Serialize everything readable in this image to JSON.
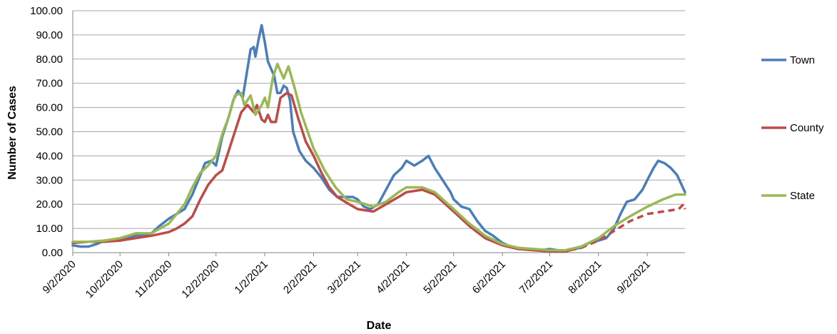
{
  "chart_data": {
    "type": "line",
    "title": "",
    "xlabel": "Date",
    "ylabel": "Number of Cases",
    "ylim": [
      0,
      100
    ],
    "xlim": [
      "2020-09-02",
      "2021-09-26"
    ],
    "y_ticks": [
      "0.00",
      "10.00",
      "20.00",
      "30.00",
      "40.00",
      "50.00",
      "60.00",
      "70.00",
      "80.00",
      "90.00",
      "100.00"
    ],
    "x_ticks": [
      {
        "date": "2020-09-02",
        "label": "9/2/2020"
      },
      {
        "date": "2020-10-02",
        "label": "10/2/2020"
      },
      {
        "date": "2020-11-02",
        "label": "11/2/2020"
      },
      {
        "date": "2020-12-02",
        "label": "12/2/2020"
      },
      {
        "date": "2021-01-02",
        "label": "1/2/2021"
      },
      {
        "date": "2021-02-02",
        "label": "2/2/2021"
      },
      {
        "date": "2021-03-02",
        "label": "3/2/2021"
      },
      {
        "date": "2021-04-02",
        "label": "4/2/2021"
      },
      {
        "date": "2021-05-02",
        "label": "5/2/2021"
      },
      {
        "date": "2021-06-02",
        "label": "6/2/2021"
      },
      {
        "date": "2021-07-02",
        "label": "7/2/2021"
      },
      {
        "date": "2021-08-02",
        "label": "8/2/2021"
      },
      {
        "date": "2021-09-02",
        "label": "9/2/2021"
      }
    ],
    "grid": "horizontal",
    "legend": "right",
    "series": [
      {
        "name": "Town",
        "color": "#4a7ebb",
        "points": [
          [
            "2020-09-02",
            3
          ],
          [
            "2020-09-07",
            2.5
          ],
          [
            "2020-09-12",
            2.5
          ],
          [
            "2020-09-17",
            3.5
          ],
          [
            "2020-09-22",
            5
          ],
          [
            "2020-09-27",
            5
          ],
          [
            "2020-10-02",
            5.5
          ],
          [
            "2020-10-07",
            6
          ],
          [
            "2020-10-12",
            7
          ],
          [
            "2020-10-17",
            7.5
          ],
          [
            "2020-10-22",
            8
          ],
          [
            "2020-10-27",
            11
          ],
          [
            "2020-11-02",
            14
          ],
          [
            "2020-11-07",
            16
          ],
          [
            "2020-11-12",
            18
          ],
          [
            "2020-11-17",
            24
          ],
          [
            "2020-11-22",
            32
          ],
          [
            "2020-11-25",
            37
          ],
          [
            "2020-11-29",
            38
          ],
          [
            "2020-12-02",
            36
          ],
          [
            "2020-12-06",
            48
          ],
          [
            "2020-12-10",
            56
          ],
          [
            "2020-12-13",
            63
          ],
          [
            "2020-12-16",
            67
          ],
          [
            "2020-12-19",
            64
          ],
          [
            "2020-12-22",
            76
          ],
          [
            "2020-12-24",
            84
          ],
          [
            "2020-12-26",
            85
          ],
          [
            "2020-12-27",
            81
          ],
          [
            "2020-12-29",
            88
          ],
          [
            "2020-12-31",
            94
          ],
          [
            "2021-01-02",
            87
          ],
          [
            "2021-01-04",
            79
          ],
          [
            "2021-01-06",
            76
          ],
          [
            "2021-01-08",
            73
          ],
          [
            "2021-01-10",
            66
          ],
          [
            "2021-01-12",
            66
          ],
          [
            "2021-01-14",
            69
          ],
          [
            "2021-01-16",
            68
          ],
          [
            "2021-01-18",
            63
          ],
          [
            "2021-01-20",
            50
          ],
          [
            "2021-01-24",
            42
          ],
          [
            "2021-01-28",
            38
          ],
          [
            "2021-02-02",
            35
          ],
          [
            "2021-02-07",
            31
          ],
          [
            "2021-02-12",
            26
          ],
          [
            "2021-02-17",
            23
          ],
          [
            "2021-02-22",
            23
          ],
          [
            "2021-02-27",
            23
          ],
          [
            "2021-03-02",
            22
          ],
          [
            "2021-03-06",
            19
          ],
          [
            "2021-03-10",
            18
          ],
          [
            "2021-03-15",
            20
          ],
          [
            "2021-03-20",
            26
          ],
          [
            "2021-03-25",
            32
          ],
          [
            "2021-03-30",
            35
          ],
          [
            "2021-04-02",
            38
          ],
          [
            "2021-04-07",
            36
          ],
          [
            "2021-04-12",
            38
          ],
          [
            "2021-04-16",
            40
          ],
          [
            "2021-04-20",
            35
          ],
          [
            "2021-04-25",
            30
          ],
          [
            "2021-04-30",
            25
          ],
          [
            "2021-05-02",
            22
          ],
          [
            "2021-05-07",
            19
          ],
          [
            "2021-05-12",
            18
          ],
          [
            "2021-05-17",
            13
          ],
          [
            "2021-05-22",
            9
          ],
          [
            "2021-05-27",
            7
          ],
          [
            "2021-06-02",
            4
          ],
          [
            "2021-06-07",
            2.5
          ],
          [
            "2021-06-12",
            2
          ],
          [
            "2021-06-17",
            1.5
          ],
          [
            "2021-06-22",
            1
          ],
          [
            "2021-06-27",
            1
          ],
          [
            "2021-07-02",
            1.5
          ],
          [
            "2021-07-07",
            1
          ],
          [
            "2021-07-12",
            0.5
          ],
          [
            "2021-07-17",
            1.5
          ],
          [
            "2021-07-22",
            2
          ],
          [
            "2021-07-27",
            4
          ],
          [
            "2021-08-02",
            5
          ],
          [
            "2021-08-07",
            6
          ],
          [
            "2021-08-12",
            10
          ],
          [
            "2021-08-16",
            16
          ],
          [
            "2021-08-20",
            21
          ],
          [
            "2021-08-25",
            22
          ],
          [
            "2021-08-30",
            26
          ],
          [
            "2021-09-02",
            30
          ],
          [
            "2021-09-06",
            35
          ],
          [
            "2021-09-09",
            38
          ],
          [
            "2021-09-13",
            37
          ],
          [
            "2021-09-17",
            35
          ],
          [
            "2021-09-21",
            32
          ],
          [
            "2021-09-26",
            25
          ]
        ]
      },
      {
        "name": "County",
        "color": "#be4b48",
        "dashed_from": "2021-07-15",
        "points": [
          [
            "2020-09-02",
            4
          ],
          [
            "2020-09-12",
            4.5
          ],
          [
            "2020-09-22",
            4.5
          ],
          [
            "2020-10-02",
            5
          ],
          [
            "2020-10-12",
            6
          ],
          [
            "2020-10-22",
            7
          ],
          [
            "2020-11-02",
            8.5
          ],
          [
            "2020-11-07",
            10
          ],
          [
            "2020-11-12",
            12
          ],
          [
            "2020-11-17",
            15
          ],
          [
            "2020-11-22",
            22
          ],
          [
            "2020-11-27",
            28
          ],
          [
            "2020-12-02",
            32
          ],
          [
            "2020-12-06",
            34
          ],
          [
            "2020-12-10",
            42
          ],
          [
            "2020-12-14",
            50
          ],
          [
            "2020-12-18",
            58
          ],
          [
            "2020-12-22",
            61
          ],
          [
            "2020-12-26",
            58
          ],
          [
            "2020-12-28",
            61
          ],
          [
            "2020-12-31",
            55
          ],
          [
            "2021-01-02",
            54
          ],
          [
            "2021-01-04",
            57
          ],
          [
            "2021-01-06",
            54
          ],
          [
            "2021-01-09",
            54
          ],
          [
            "2021-01-12",
            64
          ],
          [
            "2021-01-16",
            66
          ],
          [
            "2021-01-19",
            65
          ],
          [
            "2021-01-23",
            56
          ],
          [
            "2021-01-28",
            46
          ],
          [
            "2021-02-02",
            40
          ],
          [
            "2021-02-07",
            33
          ],
          [
            "2021-02-12",
            27
          ],
          [
            "2021-02-17",
            23
          ],
          [
            "2021-02-22",
            21
          ],
          [
            "2021-03-02",
            18
          ],
          [
            "2021-03-12",
            17
          ],
          [
            "2021-03-20",
            20
          ],
          [
            "2021-03-28",
            23
          ],
          [
            "2021-04-02",
            25
          ],
          [
            "2021-04-12",
            26
          ],
          [
            "2021-04-20",
            24
          ],
          [
            "2021-05-02",
            17
          ],
          [
            "2021-05-12",
            11
          ],
          [
            "2021-05-22",
            6
          ],
          [
            "2021-06-02",
            3
          ],
          [
            "2021-06-12",
            1.5
          ],
          [
            "2021-06-22",
            1
          ],
          [
            "2021-07-02",
            0.5
          ],
          [
            "2021-07-12",
            0.5
          ],
          [
            "2021-07-15",
            1
          ],
          [
            "2021-07-22",
            2
          ],
          [
            "2021-08-02",
            5
          ],
          [
            "2021-08-12",
            9
          ],
          [
            "2021-08-22",
            13
          ],
          [
            "2021-09-02",
            16
          ],
          [
            "2021-09-12",
            17
          ],
          [
            "2021-09-22",
            18
          ],
          [
            "2021-09-25",
            20
          ],
          [
            "2021-09-26",
            18
          ]
        ]
      },
      {
        "name": "State",
        "color": "#98b954",
        "points": [
          [
            "2020-09-02",
            4.5
          ],
          [
            "2020-09-12",
            4.5
          ],
          [
            "2020-09-22",
            5
          ],
          [
            "2020-10-02",
            6
          ],
          [
            "2020-10-12",
            8
          ],
          [
            "2020-10-22",
            8
          ],
          [
            "2020-11-02",
            12
          ],
          [
            "2020-11-07",
            16
          ],
          [
            "2020-11-12",
            20
          ],
          [
            "2020-11-17",
            27
          ],
          [
            "2020-11-22",
            33
          ],
          [
            "2020-11-27",
            36
          ],
          [
            "2020-12-02",
            40
          ],
          [
            "2020-12-06",
            49
          ],
          [
            "2020-12-10",
            56
          ],
          [
            "2020-12-14",
            65
          ],
          [
            "2020-12-18",
            66
          ],
          [
            "2020-12-20",
            61
          ],
          [
            "2020-12-24",
            65
          ],
          [
            "2020-12-27",
            57
          ],
          [
            "2020-12-31",
            61
          ],
          [
            "2021-01-02",
            64
          ],
          [
            "2021-01-04",
            60
          ],
          [
            "2021-01-07",
            72
          ],
          [
            "2021-01-10",
            78
          ],
          [
            "2021-01-14",
            72
          ],
          [
            "2021-01-17",
            77
          ],
          [
            "2021-01-21",
            68
          ],
          [
            "2021-01-25",
            58
          ],
          [
            "2021-02-02",
            43
          ],
          [
            "2021-02-09",
            34
          ],
          [
            "2021-02-16",
            27
          ],
          [
            "2021-02-23",
            22
          ],
          [
            "2021-03-02",
            21
          ],
          [
            "2021-03-12",
            19
          ],
          [
            "2021-03-20",
            21
          ],
          [
            "2021-03-28",
            25
          ],
          [
            "2021-04-02",
            27
          ],
          [
            "2021-04-12",
            27
          ],
          [
            "2021-04-20",
            25
          ],
          [
            "2021-05-02",
            18
          ],
          [
            "2021-05-12",
            12
          ],
          [
            "2021-05-22",
            7
          ],
          [
            "2021-06-02",
            3.5
          ],
          [
            "2021-06-12",
            2
          ],
          [
            "2021-06-22",
            1.5
          ],
          [
            "2021-07-02",
            1
          ],
          [
            "2021-07-12",
            1
          ],
          [
            "2021-07-22",
            2.5
          ],
          [
            "2021-08-02",
            6
          ],
          [
            "2021-08-12",
            11
          ],
          [
            "2021-08-22",
            15
          ],
          [
            "2021-09-02",
            19
          ],
          [
            "2021-09-12",
            22
          ],
          [
            "2021-09-20",
            24
          ],
          [
            "2021-09-26",
            24
          ]
        ]
      }
    ]
  }
}
